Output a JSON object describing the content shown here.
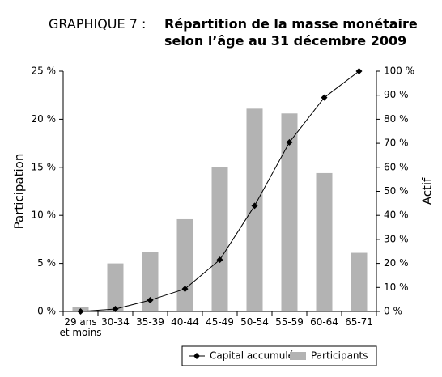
{
  "chart_data": {
    "type": "bar",
    "label": "GRAPHIQUE 7 :",
    "title": [
      "Répartition de la masse monétaire",
      "selon l’âge au 31 décembre 2009"
    ],
    "ylabel": "Participation",
    "y2label": "Actif",
    "categories": [
      "29 ans\net moins",
      "30-34",
      "35-39",
      "40-44",
      "45-49",
      "50-54",
      "55-59",
      "60-64",
      "65-71"
    ],
    "series": [
      {
        "name": "Capital accumulé",
        "type": "line",
        "axis": "y2",
        "color": "#000000",
        "values": [
          0,
          1,
          4.7,
          9.4,
          21.5,
          44,
          70.4,
          89,
          100
        ]
      },
      {
        "name": "Participants",
        "type": "bar",
        "color": "#b3b3b3",
        "values": [
          0.5,
          5.0,
          6.2,
          9.6,
          15.0,
          21.1,
          20.6,
          14.4,
          6.1
        ]
      }
    ],
    "ylim": [
      0,
      25
    ],
    "yticks": [
      {
        "value": 0,
        "label": "0 %"
      },
      {
        "value": 5,
        "label": "5 %"
      },
      {
        "value": 10,
        "label": "10 %"
      },
      {
        "value": 15,
        "label": "15 %"
      },
      {
        "value": 20,
        "label": "20 %"
      },
      {
        "value": 25,
        "label": "25 %"
      }
    ],
    "y2lim": [
      0,
      100
    ],
    "y2ticks": [
      {
        "value": 0,
        "label": "0 %"
      },
      {
        "value": 10,
        "label": "10 %"
      },
      {
        "value": 20,
        "label": "20 %"
      },
      {
        "value": 30,
        "label": "30 %"
      },
      {
        "value": 40,
        "label": "40 %"
      },
      {
        "value": 50,
        "label": "50 %"
      },
      {
        "value": 60,
        "label": "60 %"
      },
      {
        "value": 70,
        "label": "70 %"
      },
      {
        "value": 80,
        "label": "80 %"
      },
      {
        "value": 90,
        "label": "90 %"
      },
      {
        "value": 100,
        "label": "100 %"
      }
    ],
    "grid": false,
    "legend": "bottom"
  }
}
